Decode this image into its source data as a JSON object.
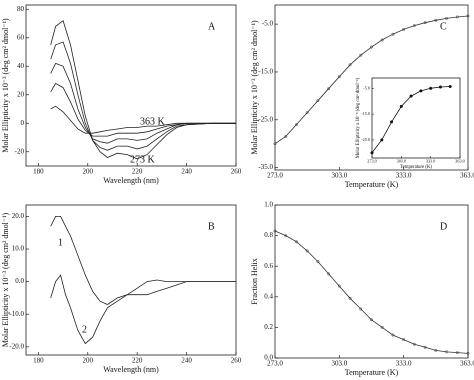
{
  "chart_data": [
    {
      "type": "line",
      "panel_label": "A",
      "xlabel": "Wavelength (nm)",
      "ylabel": "Molar Ellipticity x 10⁻³ (deg cm² dmol⁻¹)",
      "xlim": [
        175,
        260
      ],
      "xticks": [
        180,
        200,
        220,
        240,
        260
      ],
      "ylim": [
        -30,
        83
      ],
      "yticks": [
        -20,
        0,
        20,
        40,
        60,
        80
      ],
      "annotations": [
        "363 K",
        "273 K"
      ],
      "color": "#222",
      "markers": false,
      "x": [
        185,
        187,
        190,
        193,
        196,
        199,
        202,
        205,
        208,
        212,
        216,
        220,
        224,
        228,
        232,
        236,
        240,
        250,
        260
      ],
      "series": [
        {
          "values": [
            55,
            68,
            72,
            55,
            30,
            5,
            -12,
            -20,
            -24,
            -21,
            -22,
            -25,
            -22,
            -15,
            -8,
            -3,
            -1,
            0,
            0
          ]
        },
        {
          "values": [
            45,
            55,
            57,
            42,
            20,
            0,
            -12,
            -17,
            -19,
            -16,
            -16,
            -18,
            -16,
            -11,
            -6,
            -2,
            -1,
            0,
            0
          ]
        },
        {
          "values": [
            35,
            42,
            40,
            28,
            10,
            -3,
            -11,
            -13,
            -14,
            -11,
            -11,
            -12,
            -11,
            -7,
            -4,
            -1,
            0,
            0,
            0
          ]
        },
        {
          "values": [
            22,
            28,
            25,
            15,
            3,
            -5,
            -9,
            -9,
            -9,
            -7,
            -7,
            -7,
            -6,
            -4,
            -2,
            -1,
            0,
            0,
            0
          ]
        },
        {
          "values": [
            10,
            12,
            8,
            2,
            -4,
            -7,
            -7,
            -6,
            -5,
            -4,
            -3,
            -3,
            -2,
            -2,
            -1,
            0,
            0,
            0,
            0
          ]
        }
      ]
    },
    {
      "type": "line",
      "panel_label": "B",
      "xlabel": "Wavelength (nm)",
      "ylabel": "Molar Ellipticity x 10⁻³ (deg cm² dmol⁻¹)",
      "xlim": [
        175,
        260
      ],
      "xticks": [
        180,
        200,
        220,
        240,
        260
      ],
      "ylim": [
        -22.5,
        23.5
      ],
      "yticks": [
        {
          "value": -20,
          "label": "-20.0"
        },
        {
          "value": -10,
          "label": "-10.0"
        },
        {
          "value": 0,
          "label": "0.0"
        },
        {
          "value": 10,
          "label": "10.0"
        },
        {
          "value": 20,
          "label": "20.0"
        }
      ],
      "annotations": [
        "1",
        "2"
      ],
      "color": "#222",
      "markers": false,
      "x": [
        185,
        187,
        189,
        191,
        193,
        196,
        199,
        202,
        205,
        208,
        212,
        216,
        220,
        224,
        228,
        232,
        240,
        250,
        260
      ],
      "series": [
        {
          "values": [
            17,
            20,
            20,
            17,
            14,
            8,
            2,
            -3,
            -6,
            -7,
            -5,
            -4,
            -4,
            -4,
            -3,
            -2,
            0,
            0,
            0
          ]
        },
        {
          "values": [
            -5,
            0,
            2,
            -4,
            -8,
            -15,
            -19,
            -17,
            -12,
            -8,
            -6,
            -4,
            -2,
            0,
            0.5,
            0,
            0,
            0,
            0
          ]
        }
      ]
    },
    {
      "type": "line",
      "panel_label": "C",
      "xlabel": "Temperature (K)",
      "ylabel": "Molar Ellipticity x 10⁻³ (deg cm² dmol⁻¹)",
      "xlim": [
        273,
        363
      ],
      "xticks": [
        {
          "value": 273,
          "label": "273.0"
        },
        {
          "value": 303,
          "label": "303.0"
        },
        {
          "value": 333,
          "label": "333.0"
        },
        {
          "value": 363,
          "label": "363.0"
        }
      ],
      "ylim": [
        -35.5,
        -1
      ],
      "yticks": [
        {
          "value": -35,
          "label": "-35.0"
        },
        {
          "value": -25,
          "label": "-25.0"
        },
        {
          "value": -15,
          "label": "-15.0"
        },
        {
          "value": -5,
          "label": "-5.0"
        }
      ],
      "color": "#333",
      "markers": true,
      "x": [
        273,
        278,
        283,
        288,
        293,
        298,
        303,
        308,
        313,
        318,
        323,
        328,
        333,
        338,
        343,
        348,
        353,
        358,
        363
      ],
      "series": [
        {
          "values": [
            -30,
            -28.5,
            -26,
            -23.5,
            -21,
            -18.5,
            -16,
            -13.5,
            -11.5,
            -9.8,
            -8.3,
            -7.1,
            -6.1,
            -5.3,
            -4.7,
            -4.2,
            -3.8,
            -3.5,
            -3.3
          ]
        }
      ]
    },
    {
      "type": "line",
      "xlabel": "Temperature (K)",
      "ylabel": "Molar Ellipticity x 10⁻³ (deg cm² dmol⁻¹)",
      "xlim": [
        273,
        363
      ],
      "xticks": [
        {
          "value": 273,
          "label": "273.0"
        },
        {
          "value": 303,
          "label": "303.0"
        },
        {
          "value": 333,
          "label": "333.0"
        },
        {
          "value": 363,
          "label": "363.0"
        }
      ],
      "ylim": [
        -32,
        -1
      ],
      "yticks": [
        {
          "value": -25,
          "label": "-25.0"
        },
        {
          "value": -15,
          "label": "-15.0"
        },
        {
          "value": -5,
          "label": "-5.0"
        }
      ],
      "color": "#111",
      "markers": true,
      "x": [
        273,
        283,
        293,
        303,
        313,
        323,
        333,
        343,
        353
      ],
      "series": [
        {
          "values": [
            -30,
            -25,
            -18,
            -12,
            -8,
            -6,
            -5,
            -4.5,
            -4.3
          ]
        }
      ]
    },
    {
      "type": "line",
      "panel_label": "D",
      "xlabel": "Temperature (K)",
      "ylabel": "Fraction Helix",
      "xlim": [
        273,
        363
      ],
      "xticks": [
        {
          "value": 273,
          "label": "273.0"
        },
        {
          "value": 303,
          "label": "303.0"
        },
        {
          "value": 333,
          "label": "333.0"
        },
        {
          "value": 363,
          "label": "363.0"
        }
      ],
      "ylim": [
        0,
        1
      ],
      "yticks": [
        {
          "value": 0,
          "label": "0.0"
        },
        {
          "value": 0.2,
          "label": "0.2"
        },
        {
          "value": 0.4,
          "label": "0.4"
        },
        {
          "value": 0.6,
          "label": "0.6"
        },
        {
          "value": 0.8,
          "label": "0.8"
        },
        {
          "value": 1,
          "label": "1.0"
        }
      ],
      "color": "#333",
      "markers": true,
      "x": [
        273,
        278,
        283,
        288,
        293,
        298,
        303,
        308,
        313,
        318,
        323,
        328,
        333,
        338,
        343,
        348,
        353,
        358,
        363
      ],
      "series": [
        {
          "values": [
            0.83,
            0.8,
            0.76,
            0.7,
            0.63,
            0.55,
            0.47,
            0.39,
            0.32,
            0.25,
            0.2,
            0.15,
            0.12,
            0.09,
            0.07,
            0.05,
            0.04,
            0.035,
            0.03
          ]
        }
      ]
    }
  ]
}
